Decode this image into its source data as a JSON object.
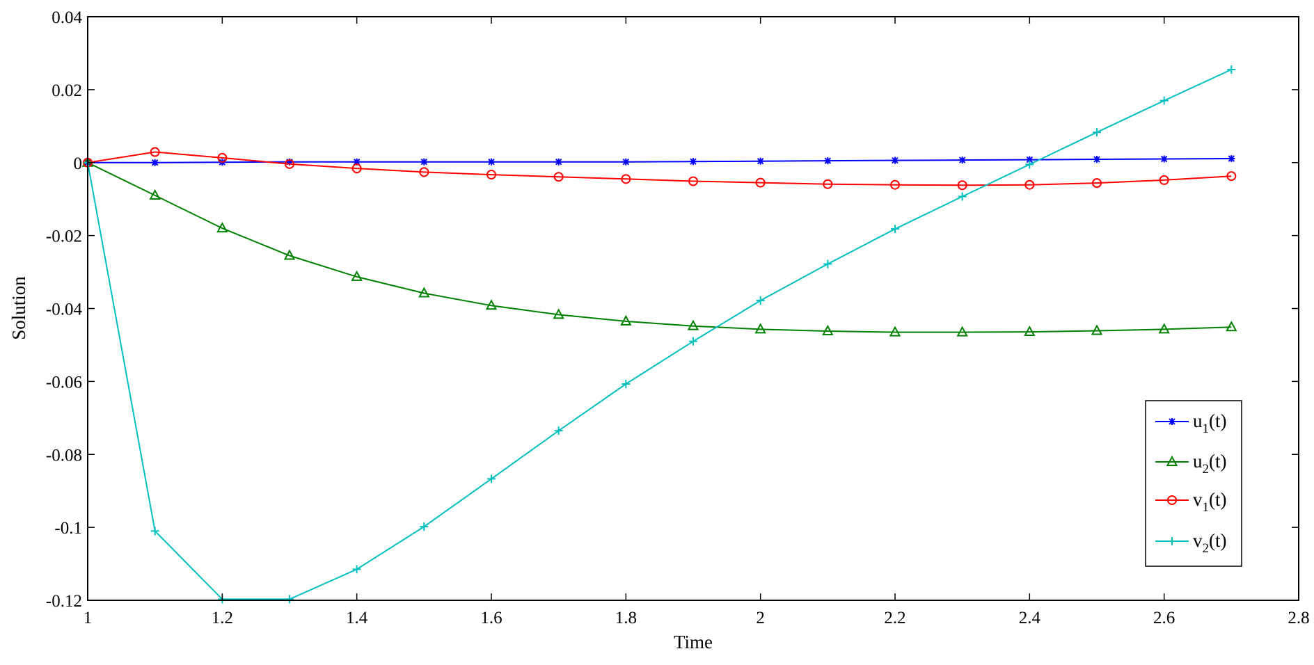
{
  "chart_data": {
    "type": "line",
    "title": "",
    "xlabel": "Time",
    "ylabel": "Solution",
    "xlim": [
      1,
      2.8
    ],
    "ylim": [
      -0.12,
      0.04
    ],
    "xticks": [
      "1",
      "1.2",
      "1.4",
      "1.6",
      "1.8",
      "2",
      "2.2",
      "2.4",
      "2.6",
      "2.8"
    ],
    "yticks": [
      "0.04",
      "0.02",
      "0",
      "-0.02",
      "-0.04",
      "-0.06",
      "-0.08",
      "-0.1",
      "-0.12"
    ],
    "grid": false,
    "legend_position": "bottom-right",
    "x": [
      1.0,
      1.1,
      1.2,
      1.3,
      1.4,
      1.5,
      1.6,
      1.7,
      1.8,
      1.9,
      2.0,
      2.1,
      2.2,
      2.3,
      2.4,
      2.5,
      2.6,
      2.7
    ],
    "series": [
      {
        "name": "u1(t)",
        "name_base": "u",
        "name_sub": "1",
        "name_suffix": "(t)",
        "color": "#0000FF",
        "marker": "star",
        "values": [
          0.0,
          0.0,
          0.0001,
          0.0002,
          0.0002,
          0.0002,
          0.0002,
          0.0002,
          0.0002,
          0.0003,
          0.0004,
          0.0005,
          0.0006,
          0.0007,
          0.0008,
          0.0009,
          0.001,
          0.0011
        ]
      },
      {
        "name": "u2(t)",
        "name_base": "u",
        "name_sub": "2",
        "name_suffix": "(t)",
        "color": "#008000",
        "marker": "triangle",
        "values": [
          0.0,
          -0.009,
          -0.018,
          -0.0255,
          -0.0313,
          -0.0358,
          -0.0392,
          -0.0417,
          -0.0435,
          -0.0448,
          -0.0457,
          -0.0462,
          -0.0465,
          -0.0465,
          -0.0464,
          -0.0461,
          -0.0457,
          -0.0451
        ]
      },
      {
        "name": "v1(t)",
        "name_base": "v",
        "name_sub": "1",
        "name_suffix": "(t)",
        "color": "#FF0000",
        "marker": "circle",
        "values": [
          0.0,
          0.0029,
          0.0013,
          -0.0004,
          -0.0016,
          -0.0026,
          -0.0033,
          -0.0039,
          -0.0045,
          -0.0051,
          -0.0055,
          -0.0059,
          -0.0061,
          -0.0062,
          -0.0061,
          -0.0056,
          -0.0048,
          -0.0037
        ]
      },
      {
        "name": "v2(t)",
        "name_base": "v",
        "name_sub": "2",
        "name_suffix": "(t)",
        "color": "#00BFBF",
        "marker": "plus",
        "values": [
          0.0,
          -0.101,
          -0.1197,
          -0.1197,
          -0.1115,
          -0.0998,
          -0.0867,
          -0.0735,
          -0.0607,
          -0.049,
          -0.0378,
          -0.0278,
          -0.0182,
          -0.0093,
          -0.0005,
          0.0083,
          0.017,
          0.0255
        ]
      }
    ]
  }
}
